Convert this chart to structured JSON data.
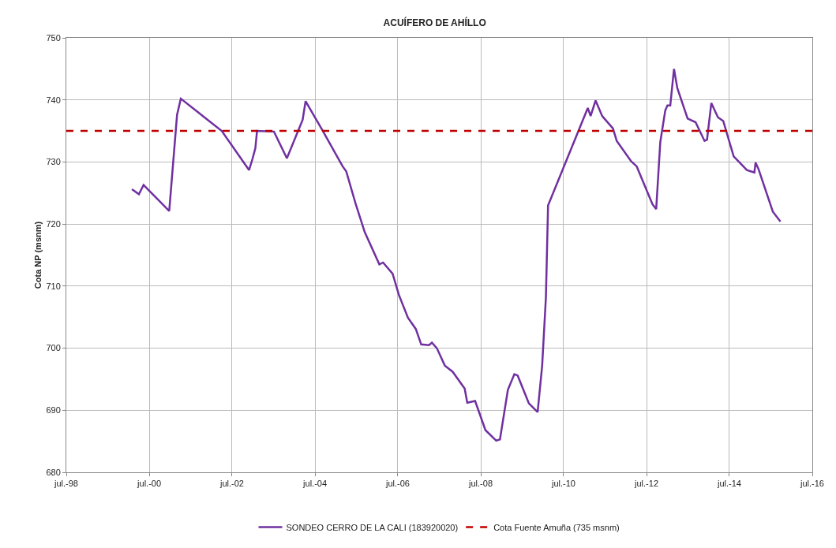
{
  "chart_data": {
    "type": "line",
    "title": "ACUÍFERO DE AHÍLLO",
    "ylabel": "Cota NP (msnm)",
    "xlim": [
      "1998-07-01",
      "2016-07-01"
    ],
    "xticks": [
      {
        "value": "1998-07-01",
        "label": "jul.-98"
      },
      {
        "value": "2000-07-01",
        "label": "jul.-00"
      },
      {
        "value": "2002-07-01",
        "label": "jul.-02"
      },
      {
        "value": "2004-07-01",
        "label": "jul.-04"
      },
      {
        "value": "2006-07-01",
        "label": "jul.-06"
      },
      {
        "value": "2008-07-01",
        "label": "jul.-08"
      },
      {
        "value": "2010-07-01",
        "label": "jul.-10"
      },
      {
        "value": "2012-07-01",
        "label": "jul.-12"
      },
      {
        "value": "2014-07-01",
        "label": "jul.-14"
      },
      {
        "value": "2016-07-01",
        "label": "jul.-16"
      }
    ],
    "ylim": [
      680,
      750
    ],
    "yticks": [
      680,
      690,
      700,
      710,
      720,
      730,
      740,
      750
    ],
    "grid": true,
    "legend": "bottom",
    "line_style": "solid",
    "marker": "none",
    "series": [
      {
        "name": "SONDEO CERRO DE LA CALI (183920020)",
        "color": "#7030a0",
        "x": [
          "2000-01-30",
          "2000-04-01",
          "2000-05-12",
          "2000-12-24",
          "2001-03-03",
          "2001-04-05",
          "2002-04-01",
          "2002-11-28",
          "2002-12-28",
          "2003-01-22",
          "2003-02-06",
          "2003-07-05",
          "2003-10-27",
          "2004-03-14",
          "2004-04-09",
          "2004-09-05",
          "2005-03-01",
          "2005-04-02",
          "2005-06-25",
          "2005-09-12",
          "2006-01-19",
          "2006-02-21",
          "2006-05-16",
          "2006-07-10",
          "2006-09-28",
          "2006-12-06",
          "2007-01-23",
          "2007-04-02",
          "2007-04-27",
          "2007-06-10",
          "2007-08-19",
          "2007-10-27",
          "2008-02-10",
          "2008-03-04",
          "2008-05-12",
          "2008-08-11",
          "2008-11-14",
          "2008-12-17",
          "2009-02-25",
          "2009-04-23",
          "2009-05-22",
          "2009-08-29",
          "2009-11-14",
          "2009-12-24",
          "2010-01-26",
          "2010-02-14",
          "2011-01-30",
          "2011-02-24",
          "2011-04-09",
          "2011-06-06",
          "2011-09-09",
          "2011-10-12",
          "2012-02-17",
          "2012-04-05",
          "2012-08-22",
          "2012-09-24",
          "2012-10-30",
          "2012-12-13",
          "2013-01-01",
          "2013-01-26",
          "2013-02-28",
          "2013-03-29",
          "2013-06-28",
          "2013-09-06",
          "2013-11-24",
          "2013-12-16",
          "2014-01-23",
          "2014-03-22",
          "2014-05-08",
          "2014-08-08",
          "2014-12-02",
          "2015-02-06",
          "2015-02-17",
          "2015-03-14",
          "2015-07-19",
          "2015-09-24"
        ],
        "values": [
          725.6,
          724.8,
          726.3,
          722.1,
          737.6,
          740.2,
          735,
          728.7,
          730.5,
          732.2,
          735,
          734.9,
          730.6,
          736.8,
          739.8,
          735.1,
          729.3,
          728.5,
          723.2,
          718.7,
          713.5,
          713.8,
          712,
          708.6,
          704.9,
          703.1,
          700.6,
          700.5,
          700.9,
          700,
          697.2,
          696.2,
          693.5,
          691.2,
          691.5,
          686.8,
          685.1,
          685.3,
          693.3,
          695.8,
          695.6,
          691.1,
          689.7,
          697.2,
          708.2,
          723,
          738.7,
          737.4,
          739.9,
          737.4,
          735.4,
          733.4,
          730.1,
          729.3,
          723.2,
          722.4,
          733.2,
          738.3,
          739.1,
          739.1,
          745,
          741.9,
          737,
          736.4,
          733.4,
          733.6,
          739.5,
          737.2,
          736.6,
          730.9,
          728.7,
          728.3,
          729.9,
          728.9,
          722,
          720.4
        ]
      }
    ],
    "ref_lines": [
      {
        "axis": "y",
        "value": 735,
        "label": "Cota Fuente Amuña (735 msnm)",
        "color": "#c00000",
        "line_style": "dashed"
      }
    ]
  }
}
